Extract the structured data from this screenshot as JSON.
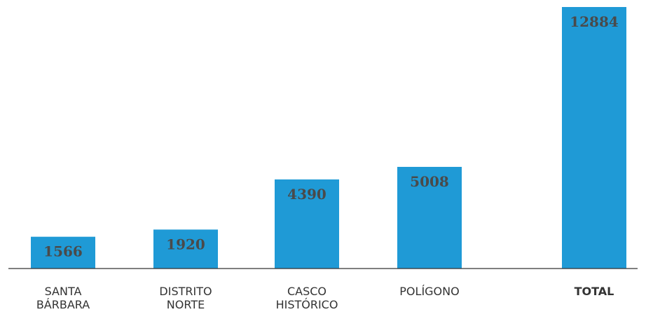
{
  "chart_data": {
    "type": "bar",
    "title": "",
    "xlabel": "",
    "ylabel": "",
    "categories": [
      [
        "SANTA",
        "BÁRBARA"
      ],
      [
        "DISTRITO",
        "NORTE"
      ],
      [
        "CASCO",
        "HISTÓRICO"
      ],
      [
        "POLÍGONO"
      ],
      [
        "TOTAL"
      ]
    ],
    "values": [
      1566,
      1920,
      4390,
      5008,
      12884
    ],
    "ylim": [
      0,
      12884
    ],
    "bar_color": "#1f9ad6",
    "highlight_category": "TOTAL",
    "grid": false,
    "legend": "none"
  }
}
